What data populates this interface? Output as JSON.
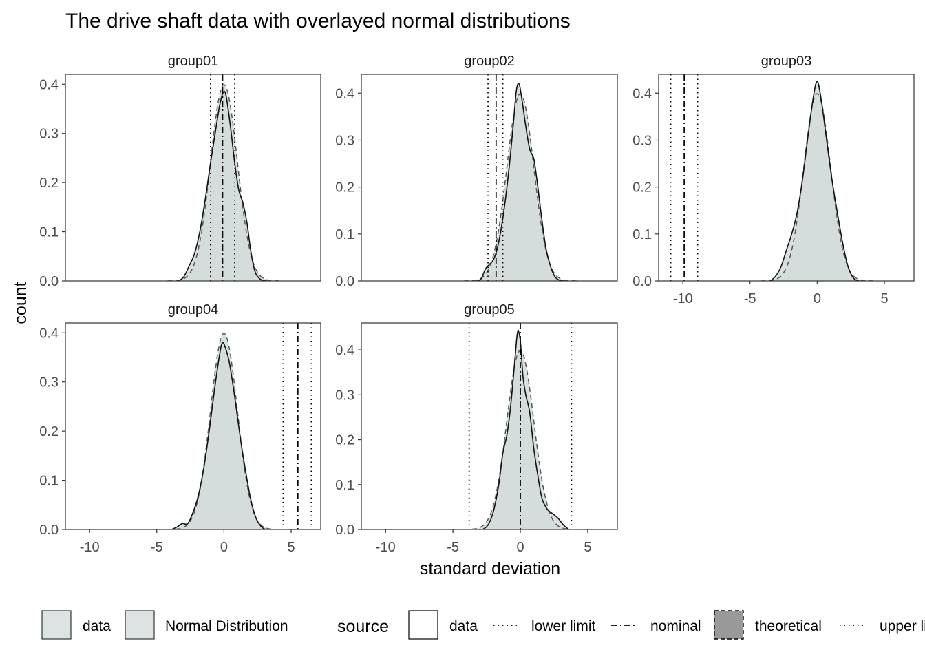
{
  "chart_data": {
    "type": "area",
    "title": "The drive shaft data with overlayed normal distributions",
    "xlabel": "standard deviation",
    "ylabel": "count",
    "xlim": [
      -11.8,
      7.2
    ],
    "x_ticks": [
      -10,
      -5,
      0,
      5
    ],
    "y_ticks": [
      0.0,
      0.1,
      0.2,
      0.3,
      0.4
    ],
    "y_tick_labels": [
      "0.0",
      "0.1",
      "0.2",
      "0.3",
      "0.4"
    ],
    "grid": false,
    "legend_position": "bottom",
    "colors": {
      "fill": "#d2dadb",
      "panel_border": "#333333",
      "legend_gray": "#999999"
    },
    "panels": [
      {
        "name": "group01",
        "ylim": [
          0,
          0.42
        ],
        "nominal": -0.1,
        "lower_limit": -1.0,
        "upper_limit": 0.8,
        "data_density": {
          "x": [
            -3.4,
            -3.0,
            -2.6,
            -2.2,
            -1.8,
            -1.4,
            -1.0,
            -0.6,
            -0.3,
            0.0,
            0.2,
            0.5,
            0.8,
            1.1,
            1.4,
            1.7,
            2.0,
            2.3,
            2.6,
            2.9,
            3.2
          ],
          "y": [
            0.0,
            0.008,
            0.03,
            0.055,
            0.1,
            0.165,
            0.24,
            0.31,
            0.36,
            0.385,
            0.37,
            0.31,
            0.24,
            0.185,
            0.16,
            0.12,
            0.06,
            0.02,
            0.006,
            0.001,
            0.0
          ]
        },
        "theoretical_density": {
          "mean": 0.0,
          "sd": 1.0
        }
      },
      {
        "name": "group02",
        "ylim": [
          0,
          0.44
        ],
        "nominal": -1.8,
        "lower_limit": -2.4,
        "upper_limit": -1.3,
        "data_density": {
          "x": [
            -3.2,
            -2.9,
            -2.6,
            -2.3,
            -2.0,
            -1.7,
            -1.4,
            -1.1,
            -0.8,
            -0.5,
            -0.3,
            -0.1,
            0.1,
            0.4,
            0.7,
            1.0,
            1.3,
            1.6,
            1.9,
            2.2,
            2.5,
            2.8,
            3.2
          ],
          "y": [
            0.0,
            0.005,
            0.025,
            0.035,
            0.045,
            0.07,
            0.115,
            0.175,
            0.25,
            0.34,
            0.405,
            0.42,
            0.39,
            0.33,
            0.28,
            0.26,
            0.2,
            0.13,
            0.07,
            0.035,
            0.012,
            0.003,
            0.0
          ]
        },
        "theoretical_density": {
          "mean": 0.0,
          "sd": 1.0
        }
      },
      {
        "name": "group03",
        "ylim": [
          0,
          0.44
        ],
        "nominal": -9.9,
        "lower_limit": -10.9,
        "upper_limit": -8.9,
        "data_density": {
          "x": [
            -3.5,
            -3.1,
            -2.7,
            -2.3,
            -1.9,
            -1.5,
            -1.1,
            -0.7,
            -0.3,
            0.0,
            0.3,
            0.7,
            1.1,
            1.5,
            1.9,
            2.3,
            2.7,
            3.1
          ],
          "y": [
            0.0,
            0.01,
            0.03,
            0.065,
            0.1,
            0.145,
            0.215,
            0.305,
            0.39,
            0.425,
            0.385,
            0.3,
            0.215,
            0.145,
            0.08,
            0.03,
            0.006,
            0.0
          ]
        },
        "theoretical_density": {
          "mean": 0.0,
          "sd": 1.0
        }
      },
      {
        "name": "group04",
        "ylim": [
          0,
          0.42
        ],
        "nominal": 5.5,
        "lower_limit": 4.4,
        "upper_limit": 6.5,
        "data_density": {
          "x": [
            -3.9,
            -3.5,
            -3.1,
            -2.7,
            -2.3,
            -1.9,
            -1.5,
            -1.1,
            -0.7,
            -0.3,
            -0.1,
            0.1,
            0.4,
            0.8,
            1.2,
            1.6,
            2.0,
            2.4,
            2.8,
            3.1
          ],
          "y": [
            0.0,
            0.005,
            0.012,
            0.012,
            0.035,
            0.07,
            0.125,
            0.2,
            0.285,
            0.36,
            0.38,
            0.37,
            0.34,
            0.27,
            0.19,
            0.12,
            0.06,
            0.022,
            0.005,
            0.0
          ]
        },
        "theoretical_density": {
          "mean": 0.0,
          "sd": 1.0
        }
      },
      {
        "name": "group05",
        "ylim": [
          0,
          0.46
        ],
        "nominal": 0.0,
        "lower_limit": -3.8,
        "upper_limit": 3.8,
        "data_density": {
          "x": [
            -2.8,
            -2.4,
            -2.0,
            -1.6,
            -1.3,
            -1.0,
            -0.7,
            -0.4,
            -0.2,
            0.0,
            0.2,
            0.4,
            0.7,
            1.0,
            1.3,
            1.6,
            2.0,
            2.4,
            2.8,
            3.2,
            3.6
          ],
          "y": [
            0.0,
            0.01,
            0.04,
            0.1,
            0.17,
            0.21,
            0.28,
            0.38,
            0.44,
            0.42,
            0.34,
            0.3,
            0.26,
            0.18,
            0.12,
            0.07,
            0.045,
            0.035,
            0.025,
            0.01,
            0.0
          ]
        },
        "theoretical_density": {
          "mean": 0.0,
          "sd": 1.0
        }
      }
    ],
    "legend": {
      "fill_keys": [
        "data",
        "Normal Distribution"
      ],
      "title": "source",
      "keys": [
        {
          "label": "data",
          "style": "box-solid"
        },
        {
          "label": "lower limit",
          "style": "dotted"
        },
        {
          "label": "nominal",
          "style": "dashdot"
        },
        {
          "label": "theoretical",
          "style": "box-dashed-gray"
        },
        {
          "label": "upper limit",
          "style": "dotted"
        }
      ]
    }
  }
}
